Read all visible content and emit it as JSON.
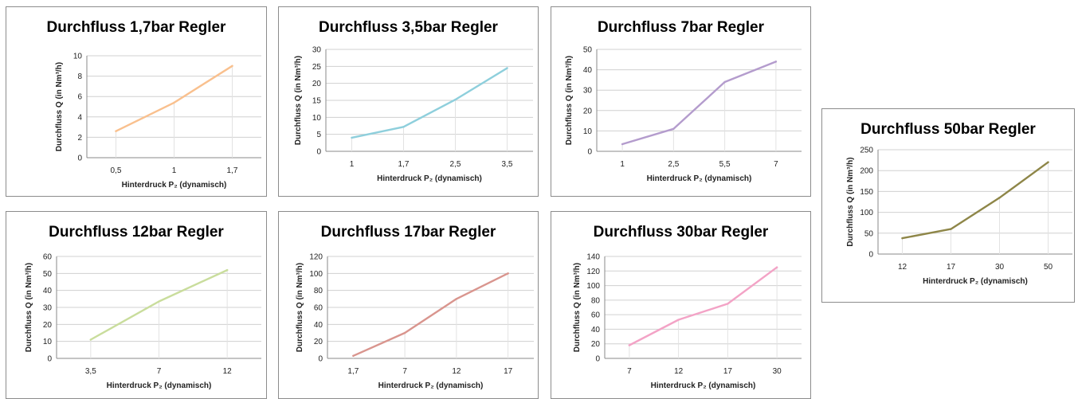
{
  "chart_data": [
    {
      "id": "c1",
      "type": "line",
      "title": "Durchfluss 1,7bar Regler",
      "xlabel": "Hinterdruck P₂ (dynamisch)",
      "ylabel": "Durchfluss Q (in Nm³/h)",
      "categories": [
        "0,5",
        "1",
        "1,7"
      ],
      "series": [
        {
          "values": [
            2.6,
            5.4,
            9.0
          ],
          "color": "#f9c08e"
        }
      ],
      "ylim": [
        0,
        10
      ],
      "yticks": [
        "0",
        "2",
        "4",
        "6",
        "8",
        "10"
      ],
      "grid": true
    },
    {
      "id": "c2",
      "type": "line",
      "title": "Durchfluss 3,5bar Regler",
      "xlabel": "Hinterdruck P₂ (dynamisch)",
      "ylabel": "Durchfluss Q (in Nm³/h)",
      "categories": [
        "1",
        "1,7",
        "2,5",
        "3,5"
      ],
      "series": [
        {
          "values": [
            4.0,
            7.2,
            15.2,
            24.5
          ],
          "color": "#8ecfdc"
        }
      ],
      "ylim": [
        0,
        30
      ],
      "yticks": [
        "0",
        "5",
        "10",
        "15",
        "20",
        "25",
        "30"
      ],
      "grid": true
    },
    {
      "id": "c3",
      "type": "line",
      "title": "Durchfluss 7bar Regler",
      "xlabel": "Hinterdruck P₂ (dynamisch)",
      "ylabel": "Durchfluss Q (in Nm³/h)",
      "categories": [
        "1",
        "2,5",
        "5,5",
        "7"
      ],
      "series": [
        {
          "values": [
            3.5,
            11.0,
            34.0,
            44.0
          ],
          "color": "#b49ccd"
        }
      ],
      "ylim": [
        0,
        50
      ],
      "yticks": [
        "0",
        "10",
        "20",
        "30",
        "40",
        "50"
      ],
      "grid": true
    },
    {
      "id": "c4",
      "type": "line",
      "title": "Durchfluss 50bar Regler",
      "xlabel": "Hinterdruck P₂ (dynamisch)",
      "ylabel": "Durchfluss Q (in Nm³/h)",
      "categories": [
        "12",
        "17",
        "30",
        "50"
      ],
      "series": [
        {
          "values": [
            38,
            60,
            135,
            220
          ],
          "color": "#8e8648"
        }
      ],
      "ylim": [
        0,
        250
      ],
      "yticks": [
        "0",
        "50",
        "100",
        "150",
        "200",
        "250"
      ],
      "grid": true
    },
    {
      "id": "c5",
      "type": "line",
      "title": "Durchfluss 12bar Regler",
      "xlabel": "Hinterdruck P₂ (dynamisch)",
      "ylabel": "Durchfluss Q (in Nm³/h)",
      "categories": [
        "3,5",
        "7",
        "12"
      ],
      "series": [
        {
          "values": [
            11.0,
            33.5,
            52.0
          ],
          "color": "#c9dd9c"
        }
      ],
      "ylim": [
        0,
        60
      ],
      "yticks": [
        "0",
        "10",
        "20",
        "30",
        "40",
        "50",
        "60"
      ],
      "grid": true
    },
    {
      "id": "c6",
      "type": "line",
      "title": "Durchfluss 17bar Regler",
      "xlabel": "Hinterdruck P₂ (dynamisch)",
      "ylabel": "Durchfluss Q (in Nm³/h)",
      "categories": [
        "1,7",
        "7",
        "12",
        "17"
      ],
      "series": [
        {
          "values": [
            3,
            30,
            70,
            100
          ],
          "color": "#d9958e"
        }
      ],
      "ylim": [
        0,
        120
      ],
      "yticks": [
        "0",
        "20",
        "40",
        "60",
        "80",
        "100",
        "120"
      ],
      "grid": true
    },
    {
      "id": "c7",
      "type": "line",
      "title": "Durchfluss 30bar Regler",
      "xlabel": "Hinterdruck P₂ (dynamisch)",
      "ylabel": "Durchfluss Q (in Nm³/h)",
      "categories": [
        "7",
        "12",
        "17",
        "30"
      ],
      "series": [
        {
          "values": [
            18,
            53,
            75,
            125
          ],
          "color": "#f3a3c6"
        }
      ],
      "ylim": [
        0,
        140
      ],
      "yticks": [
        "0",
        "20",
        "40",
        "60",
        "80",
        "100",
        "120",
        "140"
      ],
      "grid": true
    }
  ]
}
